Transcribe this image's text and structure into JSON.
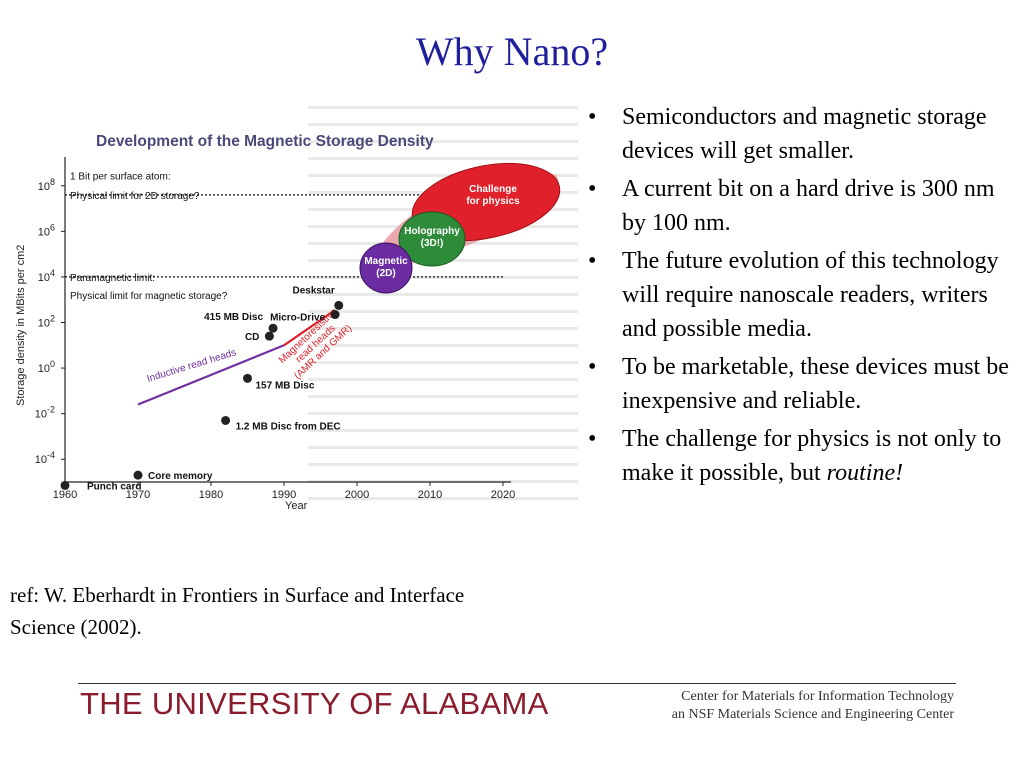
{
  "slide": {
    "title": "Why Nano?",
    "bullets": [
      {
        "text": "Semiconductors and magnetic storage devices will get smaller."
      },
      {
        "text": "A current bit on a hard drive is 300 nm by 100 nm."
      },
      {
        "text": "The future evolution of this technology will require nanoscale readers, writers and possible media."
      },
      {
        "text": "To be marketable, these devices must be inexpensive and reliable."
      },
      {
        "text": "The challenge for physics is not only to make it possible, but ",
        "emphasis": "routine!"
      }
    ],
    "ref": "ref: W. Eberhardt in Frontiers in Surface and Interface Science (2002).",
    "footer": {
      "university": "THE UNIVERSITY OF ALABAMA",
      "center_line1": "Center for Materials for Information Technology",
      "center_line2": "an NSF Materials Science and Engineering Center"
    },
    "colors": {
      "title": "#1f1f9e",
      "chart_title": "#4a4a7a",
      "university": "#8a1c2c",
      "red_line": "#e0202a",
      "purple_line": "#7030a0",
      "challenge": "#e0202a",
      "holography": "#2e8b3a",
      "magnetic": "#6a2ca0"
    }
  },
  "chart_data": {
    "type": "scatter",
    "title": "Development of the Magnetic Storage Density",
    "xlabel": "Year",
    "ylabel": "Storage density in MBits per cm2",
    "xlim": [
      1960,
      2020
    ],
    "ylim": [
      -5,
      9
    ],
    "log_scale_y": true,
    "x_ticks": [
      1960,
      1970,
      1980,
      1990,
      2000,
      2010,
      2020
    ],
    "y_ticks": [
      {
        "value": -4,
        "label": "10-4"
      },
      {
        "value": -2,
        "label": "10-2"
      },
      {
        "value": 0,
        "label": "10 0"
      },
      {
        "value": 2,
        "label": "10 2"
      },
      {
        "value": 4,
        "label": "10 4"
      },
      {
        "value": 6,
        "label": "10 6"
      },
      {
        "value": 8,
        "label": "10 8"
      }
    ],
    "limits": [
      {
        "y": 8.45,
        "label": "1 Bit per surface atom:"
      },
      {
        "y": 7.6,
        "label": "Physical limit for 2D storage?"
      },
      {
        "y": 4,
        "label": "Paramagnetic limit:"
      },
      {
        "y": 3.2,
        "label": "Physical limit for magnetic storage?"
      }
    ],
    "points": [
      {
        "x": 1960,
        "y": -5.15,
        "label": "Punch card"
      },
      {
        "x": 1970,
        "y": -4.7,
        "label": "Core memory"
      },
      {
        "x": 1982,
        "y": -2.3,
        "label": "1.2 MB Disc from DEC"
      },
      {
        "x": 1985,
        "y": -0.45,
        "label": "157 MB Disc"
      },
      {
        "x": 1988,
        "y": 1.4,
        "label": "CD"
      },
      {
        "x": 1988.5,
        "y": 1.75,
        "label": "415 MB Disc"
      },
      {
        "x": 1997,
        "y": 2.35,
        "label": "Micro-Drive"
      },
      {
        "x": 1997.5,
        "y": 2.75,
        "label": "Deskstar"
      }
    ],
    "lines": [
      {
        "name": "Inductive read heads",
        "color": "#7030a0",
        "x": [
          1970,
          1990
        ],
        "y": [
          -1.6,
          1.0
        ]
      },
      {
        "name": "Magnetoresistive read heads (AMR and GMR)",
        "color": "#e0202a",
        "x": [
          1990,
          1997
        ],
        "y": [
          1.0,
          2.55
        ]
      }
    ],
    "regions": [
      {
        "label": "Magnetic (2D)",
        "color": "#6a2ca0"
      },
      {
        "label": "Holography (3D!)",
        "color": "#2e8b3a"
      },
      {
        "label": "Challenge for physics",
        "color": "#e0202a"
      }
    ]
  }
}
